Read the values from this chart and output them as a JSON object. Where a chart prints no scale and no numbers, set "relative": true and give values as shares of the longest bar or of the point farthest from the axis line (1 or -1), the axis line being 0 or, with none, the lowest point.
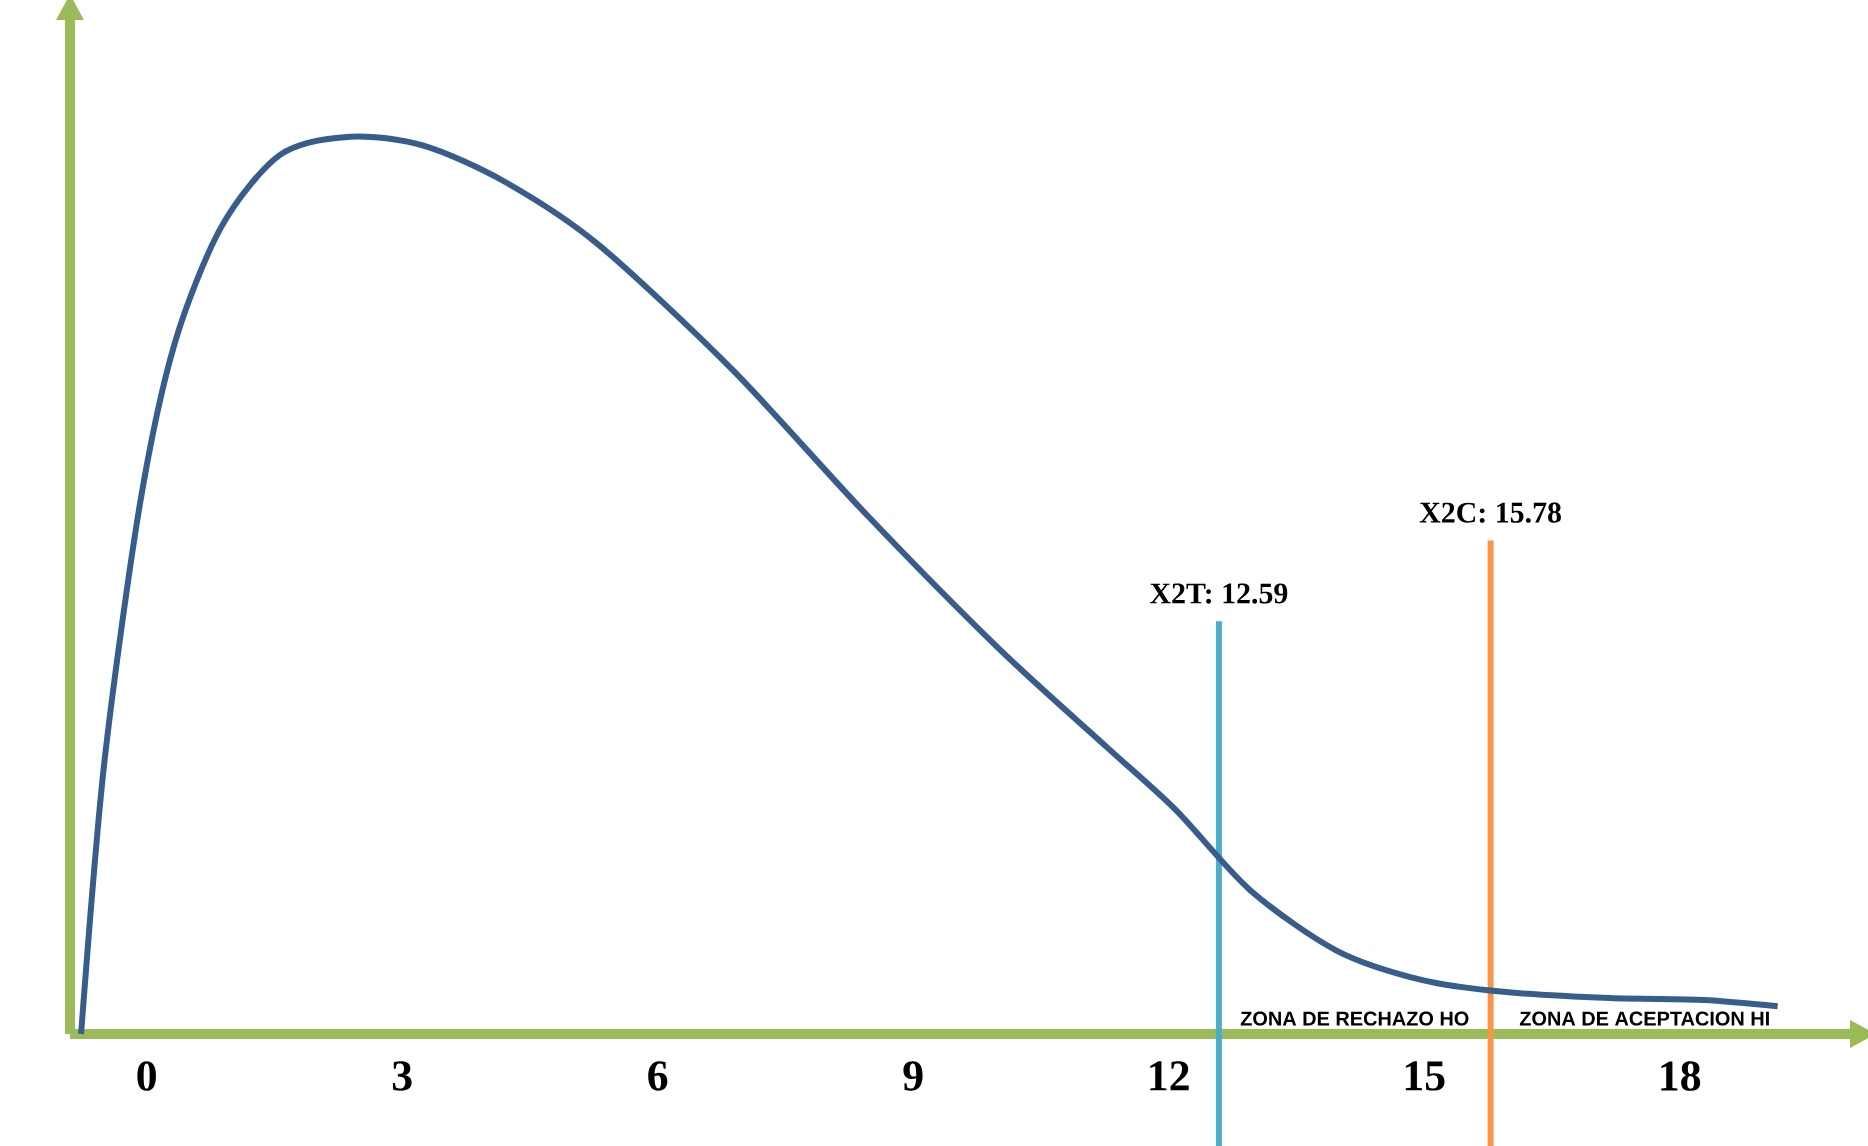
{
  "chart_data": {
    "type": "line",
    "relative": true,
    "color": "#385d8a",
    "x": [
      -0.77,
      -0.5,
      -0.08,
      0.33,
      0.88,
      1.57,
      2.39,
      3.25,
      4.2,
      5.3,
      6.88,
      8.44,
      10.0,
      11.27,
      12.08,
      12.96,
      13.97,
      14.98,
      15.93,
      17.18,
      18.28,
      19.15
    ],
    "values": [
      0,
      0.3,
      0.59,
      0.77,
      0.9,
      0.98,
      1.0,
      0.99,
      0.95,
      0.88,
      0.74,
      0.58,
      0.43,
      0.32,
      0.25,
      0.16,
      0.093,
      0.06,
      0.047,
      0.04,
      0.038,
      0.031
    ],
    "xlim": [
      -0.9,
      20
    ],
    "xticks": [
      0,
      3,
      6,
      9,
      12,
      15,
      18
    ],
    "ref_lines": [
      {
        "axis": "x",
        "value": 12.59,
        "label": "X2T: 12.59",
        "color": "#4bacc6"
      },
      {
        "axis": "x",
        "value": 15.78,
        "label": "X2C: 15.78",
        "color": "#f79646"
      }
    ],
    "annotations": [
      "ZONA DE RECHAZO HO",
      "ZONA DE ACEPTACION HI"
    ]
  }
}
